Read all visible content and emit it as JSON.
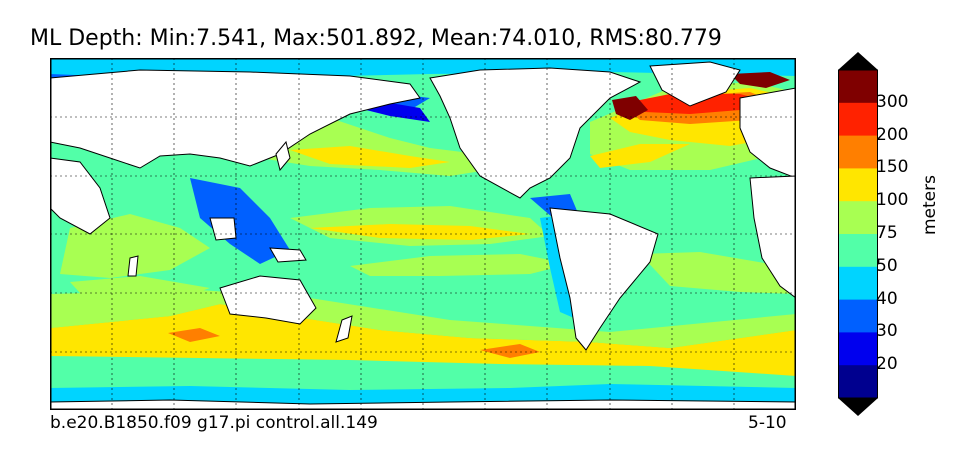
{
  "title": "ML Depth: Min:7.541, Max:501.892, Mean:74.010, RMS:80.779",
  "caption_left": "b.e20.B1850.f09 g17.pi control.all.149",
  "caption_right": "5-10",
  "colorbar": {
    "units": "meters",
    "ticks": [
      "300",
      "200",
      "150",
      "100",
      "75",
      "50",
      "40",
      "30",
      "20"
    ],
    "colors": [
      "#7f0000",
      "#ff2200",
      "#ff7f00",
      "#ffe600",
      "#a8ff52",
      "#52ffa8",
      "#00d4ff",
      "#0060ff",
      "#0000ee",
      "#00008f"
    ],
    "over_color": "#000000",
    "under_color": "#000000"
  },
  "map": {
    "background_color": "#52ffa8",
    "land_color": "#ffffff",
    "coast_color": "#000000",
    "grid": true
  }
}
